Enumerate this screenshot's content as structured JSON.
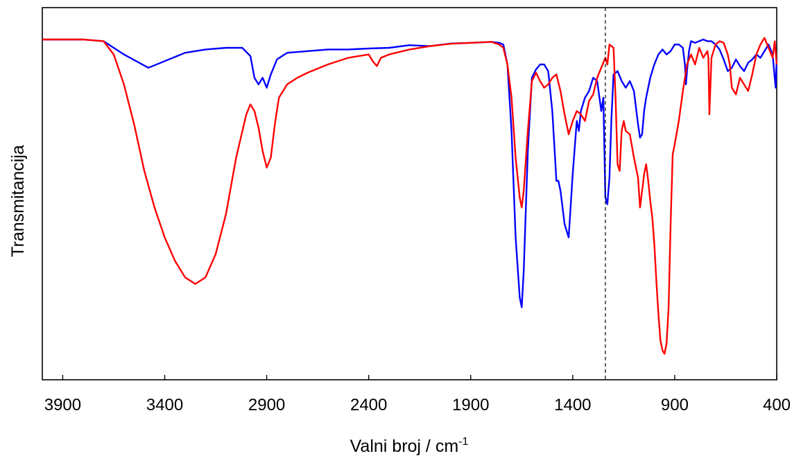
{
  "chart_data": {
    "type": "line",
    "title": "",
    "xlabel": "Valni broj / cm",
    "xlabel_superscript": "-1",
    "ylabel": "Transmitancija",
    "x_reversed": true,
    "xlim": [
      4000,
      400
    ],
    "ylim": [
      0,
      1
    ],
    "xticks": [
      3900,
      3400,
      2900,
      2400,
      1900,
      1400,
      900,
      400
    ],
    "xtick_labels": [
      "3900",
      "3400",
      "2900",
      "2400",
      "1900",
      "1400",
      "900",
      "400"
    ],
    "y_tick_labels_shown": false,
    "grid": false,
    "legend": "none",
    "reference_line": {
      "x": 1240,
      "style": "dashed",
      "color": "#000000"
    },
    "series": [
      {
        "color": "#0000ff",
        "x": [
          4000,
          3800,
          3700,
          3600,
          3480,
          3400,
          3300,
          3200,
          3100,
          3020,
          2980,
          2960,
          2940,
          2920,
          2900,
          2880,
          2850,
          2800,
          2700,
          2600,
          2500,
          2400,
          2300,
          2200,
          2100,
          2000,
          1900,
          1800,
          1760,
          1740,
          1720,
          1700,
          1680,
          1660,
          1650,
          1640,
          1620,
          1600,
          1580,
          1560,
          1540,
          1520,
          1500,
          1480,
          1470,
          1460,
          1440,
          1420,
          1400,
          1380,
          1370,
          1360,
          1340,
          1320,
          1300,
          1280,
          1260,
          1250,
          1240,
          1230,
          1220,
          1210,
          1200,
          1180,
          1160,
          1140,
          1120,
          1100,
          1080,
          1070,
          1060,
          1050,
          1040,
          1020,
          1000,
          980,
          960,
          940,
          920,
          900,
          880,
          860,
          850,
          845,
          840,
          830,
          820,
          800,
          780,
          760,
          740,
          720,
          700,
          680,
          660,
          640,
          620,
          600,
          580,
          560,
          540,
          520,
          500,
          480,
          460,
          440,
          420,
          410,
          405,
          400
        ],
        "y": [
          0.975,
          0.975,
          0.97,
          0.93,
          0.89,
          0.91,
          0.935,
          0.945,
          0.95,
          0.95,
          0.925,
          0.86,
          0.84,
          0.86,
          0.83,
          0.87,
          0.915,
          0.935,
          0.94,
          0.945,
          0.945,
          0.948,
          0.95,
          0.958,
          0.955,
          0.963,
          0.965,
          0.968,
          0.965,
          0.96,
          0.9,
          0.7,
          0.38,
          0.2,
          0.17,
          0.28,
          0.64,
          0.86,
          0.885,
          0.9,
          0.9,
          0.88,
          0.76,
          0.55,
          0.55,
          0.52,
          0.42,
          0.38,
          0.57,
          0.73,
          0.7,
          0.76,
          0.8,
          0.82,
          0.86,
          0.85,
          0.76,
          0.8,
          0.5,
          0.48,
          0.56,
          0.74,
          0.87,
          0.88,
          0.85,
          0.83,
          0.85,
          0.82,
          0.72,
          0.68,
          0.69,
          0.76,
          0.8,
          0.86,
          0.9,
          0.93,
          0.945,
          0.93,
          0.94,
          0.96,
          0.96,
          0.95,
          0.9,
          0.84,
          0.88,
          0.94,
          0.97,
          0.965,
          0.97,
          0.975,
          0.97,
          0.97,
          0.96,
          0.945,
          0.915,
          0.88,
          0.89,
          0.915,
          0.895,
          0.88,
          0.905,
          0.915,
          0.93,
          0.92,
          0.94,
          0.96,
          0.93,
          0.86,
          0.83,
          0.92
        ]
      },
      {
        "color": "#ff0000",
        "x": [
          4000,
          3800,
          3700,
          3650,
          3600,
          3550,
          3500,
          3450,
          3400,
          3350,
          3300,
          3250,
          3200,
          3150,
          3100,
          3050,
          3000,
          2980,
          2960,
          2940,
          2920,
          2900,
          2880,
          2860,
          2840,
          2800,
          2750,
          2700,
          2600,
          2500,
          2400,
          2380,
          2360,
          2340,
          2300,
          2200,
          2100,
          2000,
          1900,
          1800,
          1760,
          1740,
          1720,
          1700,
          1680,
          1660,
          1650,
          1640,
          1620,
          1600,
          1580,
          1560,
          1540,
          1520,
          1500,
          1480,
          1460,
          1440,
          1420,
          1400,
          1380,
          1360,
          1340,
          1320,
          1300,
          1280,
          1260,
          1240,
          1230,
          1220,
          1200,
          1190,
          1180,
          1170,
          1160,
          1150,
          1140,
          1120,
          1100,
          1080,
          1070,
          1060,
          1050,
          1040,
          1030,
          1020,
          1010,
          1000,
          990,
          980,
          970,
          960,
          950,
          940,
          930,
          920,
          910,
          900,
          880,
          860,
          840,
          820,
          800,
          780,
          760,
          740,
          735,
          730,
          720,
          700,
          680,
          660,
          640,
          630,
          620,
          600,
          580,
          560,
          540,
          520,
          500,
          480,
          460,
          440,
          420,
          410,
          400
        ],
        "y": [
          0.975,
          0.975,
          0.97,
          0.93,
          0.84,
          0.72,
          0.58,
          0.47,
          0.38,
          0.31,
          0.26,
          0.24,
          0.26,
          0.33,
          0.45,
          0.62,
          0.75,
          0.78,
          0.76,
          0.71,
          0.64,
          0.59,
          0.62,
          0.72,
          0.8,
          0.84,
          0.86,
          0.875,
          0.9,
          0.92,
          0.93,
          0.91,
          0.895,
          0.92,
          0.93,
          0.945,
          0.955,
          0.962,
          0.965,
          0.968,
          0.96,
          0.95,
          0.9,
          0.8,
          0.62,
          0.5,
          0.47,
          0.52,
          0.7,
          0.85,
          0.875,
          0.85,
          0.83,
          0.84,
          0.86,
          0.87,
          0.82,
          0.75,
          0.69,
          0.73,
          0.76,
          0.75,
          0.73,
          0.79,
          0.81,
          0.86,
          0.89,
          0.92,
          0.9,
          0.96,
          0.95,
          0.8,
          0.6,
          0.58,
          0.7,
          0.73,
          0.7,
          0.69,
          0.62,
          0.56,
          0.47,
          0.52,
          0.57,
          0.6,
          0.55,
          0.49,
          0.44,
          0.36,
          0.25,
          0.15,
          0.07,
          0.04,
          0.03,
          0.06,
          0.17,
          0.42,
          0.63,
          0.66,
          0.73,
          0.82,
          0.9,
          0.93,
          0.9,
          0.95,
          0.92,
          0.94,
          0.92,
          0.75,
          0.92,
          0.96,
          0.97,
          0.965,
          0.93,
          0.9,
          0.83,
          0.81,
          0.86,
          0.84,
          0.82,
          0.87,
          0.93,
          0.96,
          0.98,
          0.95,
          0.92,
          0.97,
          0.9
        ]
      }
    ]
  }
}
